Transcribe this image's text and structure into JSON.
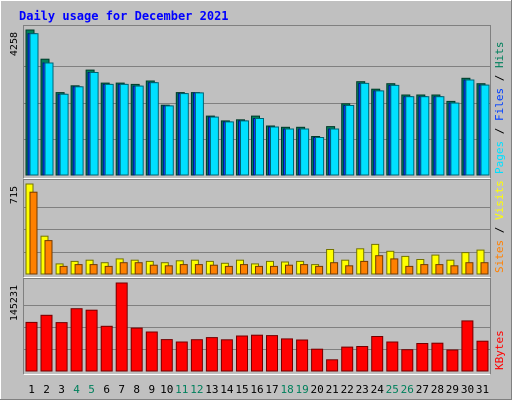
{
  "chart_data": {
    "type": "bar",
    "title": "Daily usage for December 2021",
    "categories": [
      "1",
      "2",
      "3",
      "4",
      "5",
      "6",
      "7",
      "8",
      "9",
      "10",
      "11",
      "12",
      "13",
      "14",
      "15",
      "16",
      "17",
      "18",
      "19",
      "20",
      "21",
      "22",
      "23",
      "24",
      "25",
      "26",
      "27",
      "28",
      "29",
      "30",
      "31"
    ],
    "weekend_days": [
      "4",
      "5",
      "11",
      "12",
      "18",
      "19",
      "25",
      "26"
    ],
    "panels": [
      {
        "id": "hits-files-pages",
        "ymax_label": "4258",
        "ymax": 4258,
        "series": [
          {
            "name": "Hits",
            "color": "#00805c",
            "values": [
              4258,
              3400,
              2420,
              2620,
              3080,
              2700,
              2700,
              2660,
              2760,
              2050,
              2420,
              2420,
              1730,
              1590,
              1620,
              1730,
              1440,
              1400,
              1400,
              1130,
              1420,
              2090,
              2740,
              2520,
              2680,
              2350,
              2350,
              2350,
              2160,
              2840,
              2680
            ]
          },
          {
            "name": "Files",
            "color": "#0040ff",
            "values": [
              4150,
              3290,
              2370,
              2590,
              3010,
              2660,
              2660,
              2610,
              2710,
              2030,
              2390,
              2410,
              1700,
              1560,
              1590,
              1660,
              1410,
              1350,
              1350,
              1100,
              1350,
              2040,
              2690,
              2470,
              2630,
              2300,
              2300,
              2300,
              2110,
              2790,
              2640
            ]
          },
          {
            "name": "Pages",
            "color": "#00e0ff",
            "values": [
              4150,
              3290,
              2370,
              2590,
              3010,
              2660,
              2660,
              2610,
              2710,
              2030,
              2390,
              2410,
              1700,
              1560,
              1590,
              1660,
              1410,
              1350,
              1350,
              1100,
              1350,
              2040,
              2690,
              2470,
              2630,
              2300,
              2300,
              2300,
              2110,
              2790,
              2640
            ]
          }
        ]
      },
      {
        "id": "visits-sites",
        "ymax_label": "715",
        "ymax": 715,
        "series": [
          {
            "name": "Visits",
            "color": "#ffff00",
            "values": [
              715,
              300,
              80,
              100,
              110,
              90,
              120,
              110,
              100,
              90,
              105,
              110,
              100,
              85,
              110,
              80,
              100,
              95,
              100,
              75,
              195,
              110,
              200,
              235,
              180,
              140,
              115,
              150,
              110,
              170,
              190
            ]
          },
          {
            "name": "Sites",
            "color": "#ff8000",
            "values": [
              650,
              265,
              60,
              75,
              75,
              60,
              90,
              90,
              70,
              65,
              75,
              75,
              70,
              60,
              75,
              60,
              60,
              70,
              75,
              60,
              90,
              65,
              100,
              145,
              120,
              60,
              75,
              75,
              65,
              90,
              90
            ]
          }
        ]
      },
      {
        "id": "kbytes",
        "ymax_label": "145231",
        "ymax": 145231,
        "series": [
          {
            "name": "KBytes",
            "color": "#ff0000",
            "values": [
              80200,
              91900,
              79800,
              102800,
              100400,
              73800,
              145231,
              70800,
              64400,
              51900,
              47800,
              51600,
              55100,
              51500,
              57800,
              59100,
              58400,
              52900,
              51100,
              36000,
              18500,
              39500,
              40400,
              57000,
              47800,
              35100,
              45400,
              45800,
              34600,
              82700,
              49100
            ]
          }
        ]
      }
    ],
    "legend_placement": "right",
    "grid": true
  },
  "colors": {
    "title": "#0000ff",
    "background": "#c0c0c0",
    "plot_bg": "#c0c0c0",
    "gridline": "#808080",
    "weekday_label": "#000000",
    "weekend_label": "#00805c"
  }
}
